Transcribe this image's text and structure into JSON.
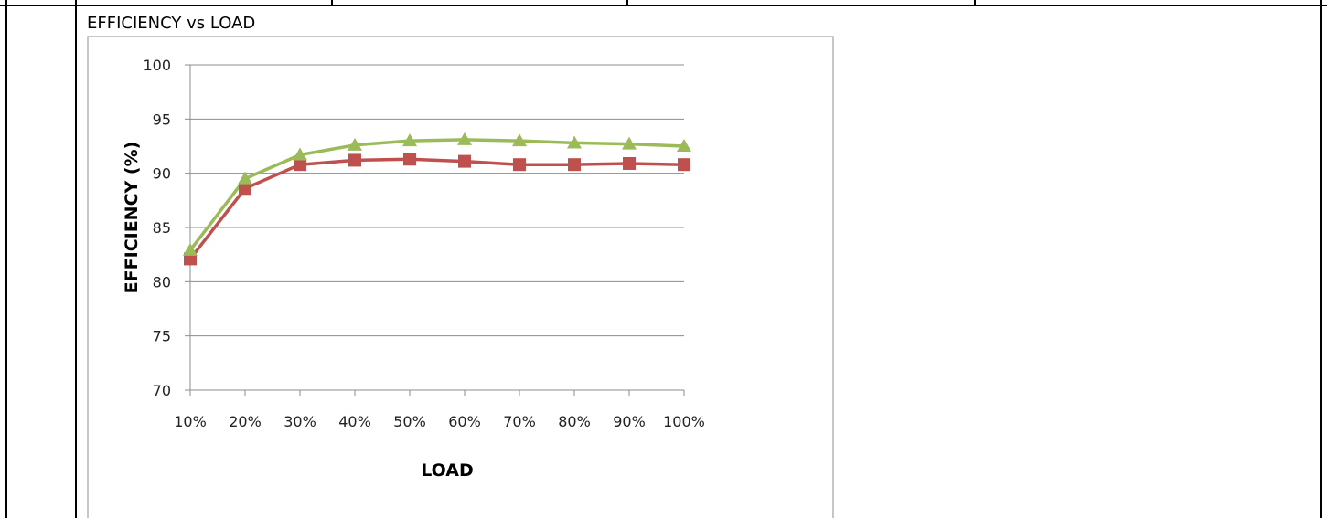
{
  "caption": "EFFICIENCY vs LOAD",
  "colors": {
    "series_1": "#c0504d",
    "series_2": "#9bbb59",
    "gridline": "#8c8c8c",
    "axis": "#8c8c8c",
    "chart_border": "#8c8c8c",
    "table_border": "#000000"
  },
  "chart_data": {
    "type": "line",
    "title": "",
    "xlabel": "LOAD",
    "ylabel": "EFFICIENCY (%)",
    "categories": [
      "10%",
      "20%",
      "30%",
      "40%",
      "50%",
      "60%",
      "70%",
      "80%",
      "90%",
      "100%"
    ],
    "ylim": [
      70,
      100
    ],
    "yticks": [
      70,
      75,
      80,
      85,
      90,
      95,
      100
    ],
    "grid": true,
    "legend": "none",
    "series": [
      {
        "marker": "square",
        "color": "#c0504d",
        "values": [
          82.1,
          88.6,
          90.8,
          91.2,
          91.3,
          91.1,
          90.8,
          90.8,
          90.9,
          90.8
        ]
      },
      {
        "marker": "triangle",
        "color": "#9bbb59",
        "values": [
          82.9,
          89.5,
          91.7,
          92.6,
          93.0,
          93.1,
          93.0,
          92.8,
          92.7,
          92.5
        ]
      }
    ]
  }
}
